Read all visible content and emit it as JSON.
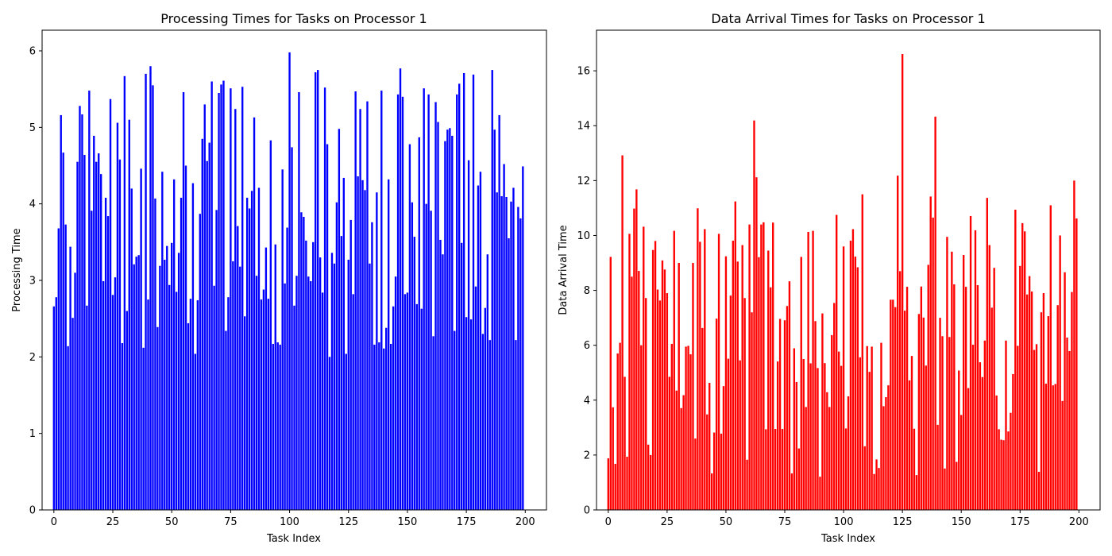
{
  "chart_data": [
    {
      "type": "bar",
      "title": "Processing Times for Tasks on Processor 1",
      "xlabel": "Task Index",
      "ylabel": "Processing Time",
      "color": "#0000ff",
      "xlim": [
        -5,
        209
      ],
      "ylim": [
        0,
        6.27
      ],
      "xticks": [
        0,
        25,
        50,
        75,
        100,
        125,
        150,
        175,
        200
      ],
      "yticks": [
        0,
        1,
        2,
        3,
        4,
        5,
        6
      ],
      "x": [
        0,
        1,
        2,
        3,
        4,
        5,
        6,
        7,
        8,
        9,
        10,
        11,
        12,
        13,
        14,
        15,
        16,
        17,
        18,
        19,
        20,
        21,
        22,
        23,
        24,
        25,
        26,
        27,
        28,
        29,
        30,
        31,
        32,
        33,
        34,
        35,
        36,
        37,
        38,
        39,
        40,
        41,
        42,
        43,
        44,
        45,
        46,
        47,
        48,
        49,
        50,
        51,
        52,
        53,
        54,
        55,
        56,
        57,
        58,
        59,
        60,
        61,
        62,
        63,
        64,
        65,
        66,
        67,
        68,
        69,
        70,
        71,
        72,
        73,
        74,
        75,
        76,
        77,
        78,
        79,
        80,
        81,
        82,
        83,
        84,
        85,
        86,
        87,
        88,
        89,
        90,
        91,
        92,
        93,
        94,
        95,
        96,
        97,
        98,
        99,
        100,
        101,
        102,
        103,
        104,
        105,
        106,
        107,
        108,
        109,
        110,
        111,
        112,
        113,
        114,
        115,
        116,
        117,
        118,
        119,
        120,
        121,
        122,
        123,
        124,
        125,
        126,
        127,
        128,
        129,
        130,
        131,
        132,
        133,
        134,
        135,
        136,
        137,
        138,
        139,
        140,
        141,
        142,
        143,
        144,
        145,
        146,
        147,
        148,
        149,
        150,
        151,
        152,
        153,
        154,
        155,
        156,
        157,
        158,
        159,
        160,
        161,
        162,
        163,
        164,
        165,
        166,
        167,
        168,
        169,
        170,
        171,
        172,
        173,
        174,
        175,
        176,
        177,
        178,
        179,
        180,
        181,
        182,
        183,
        184,
        185,
        186,
        187,
        188,
        189,
        190,
        191,
        192,
        193,
        194,
        195,
        196,
        197,
        198,
        199
      ],
      "values": [
        2.66,
        2.78,
        3.68,
        5.16,
        4.67,
        3.73,
        2.14,
        3.44,
        2.51,
        3.1,
        4.55,
        5.28,
        5.17,
        4.64,
        2.67,
        5.48,
        3.91,
        4.89,
        4.55,
        4.66,
        4.39,
        2.99,
        4.08,
        3.84,
        5.37,
        2.81,
        3.04,
        5.06,
        4.58,
        2.18,
        5.67,
        2.6,
        5.1,
        4.2,
        3.21,
        3.31,
        3.33,
        4.46,
        2.12,
        5.7,
        2.75,
        5.8,
        5.55,
        4.07,
        2.39,
        3.19,
        4.42,
        3.27,
        3.45,
        2.94,
        3.49,
        4.32,
        2.85,
        3.36,
        4.08,
        5.46,
        4.5,
        2.44,
        2.76,
        4.27,
        2.04,
        2.74,
        3.87,
        4.85,
        5.3,
        4.56,
        4.8,
        5.6,
        2.93,
        3.92,
        5.45,
        5.56,
        5.61,
        2.34,
        2.78,
        5.51,
        3.25,
        5.24,
        3.71,
        3.18,
        5.53,
        2.53,
        4.08,
        3.94,
        4.17,
        5.13,
        3.06,
        4.21,
        2.75,
        2.88,
        3.43,
        2.76,
        4.83,
        2.17,
        3.47,
        2.19,
        2.16,
        4.45,
        2.96,
        3.69,
        5.98,
        4.74,
        2.67,
        3.06,
        5.46,
        3.89,
        3.83,
        3.52,
        3.05,
        2.99,
        3.5,
        5.72,
        5.75,
        3.3,
        2.84,
        5.52,
        4.78,
        2.0,
        3.36,
        3.22,
        4.02,
        4.98,
        3.58,
        4.34,
        2.04,
        3.27,
        3.79,
        2.82,
        5.47,
        4.36,
        5.24,
        4.31,
        4.18,
        5.34,
        3.22,
        3.76,
        2.16,
        4.15,
        2.19,
        5.48,
        2.11,
        2.38,
        4.32,
        2.17,
        2.66,
        3.05,
        5.43,
        5.77,
        5.4,
        2.82,
        2.84,
        4.78,
        4.02,
        3.57,
        2.69,
        4.87,
        2.63,
        5.51,
        4.0,
        5.43,
        3.91,
        2.27,
        5.33,
        5.07,
        3.53,
        3.34,
        4.82,
        4.97,
        4.99,
        4.89,
        2.34,
        5.43,
        5.57,
        3.49,
        5.71,
        2.52,
        4.57,
        2.49,
        5.69,
        2.92,
        4.24,
        4.42,
        2.3,
        2.64,
        3.34,
        2.22,
        5.75,
        4.97,
        4.15,
        5.16,
        4.1,
        4.52,
        4.09,
        3.55,
        4.03,
        4.21,
        2.22,
        3.96,
        3.81,
        4.49
      ]
    },
    {
      "type": "bar",
      "title": "Data Arrival Times for Tasks on Processor 1",
      "xlabel": "Task Index",
      "ylabel": "Data Arrival Time",
      "color": "#ff0000",
      "xlim": [
        -5,
        209
      ],
      "ylim": [
        0,
        17.48
      ],
      "xticks": [
        0,
        25,
        50,
        75,
        100,
        125,
        150,
        175,
        200
      ],
      "yticks": [
        0,
        2,
        4,
        6,
        8,
        10,
        12,
        14,
        16
      ],
      "x": [
        0,
        1,
        2,
        3,
        4,
        5,
        6,
        7,
        8,
        9,
        10,
        11,
        12,
        13,
        14,
        15,
        16,
        17,
        18,
        19,
        20,
        21,
        22,
        23,
        24,
        25,
        26,
        27,
        28,
        29,
        30,
        31,
        32,
        33,
        34,
        35,
        36,
        37,
        38,
        39,
        40,
        41,
        42,
        43,
        44,
        45,
        46,
        47,
        48,
        49,
        50,
        51,
        52,
        53,
        54,
        55,
        56,
        57,
        58,
        59,
        60,
        61,
        62,
        63,
        64,
        65,
        66,
        67,
        68,
        69,
        70,
        71,
        72,
        73,
        74,
        75,
        76,
        77,
        78,
        79,
        80,
        81,
        82,
        83,
        84,
        85,
        86,
        87,
        88,
        89,
        90,
        91,
        92,
        93,
        94,
        95,
        96,
        97,
        98,
        99,
        100,
        101,
        102,
        103,
        104,
        105,
        106,
        107,
        108,
        109,
        110,
        111,
        112,
        113,
        114,
        115,
        116,
        117,
        118,
        119,
        120,
        121,
        122,
        123,
        124,
        125,
        126,
        127,
        128,
        129,
        130,
        131,
        132,
        133,
        134,
        135,
        136,
        137,
        138,
        139,
        140,
        141,
        142,
        143,
        144,
        145,
        146,
        147,
        148,
        149,
        150,
        151,
        152,
        153,
        154,
        155,
        156,
        157,
        158,
        159,
        160,
        161,
        162,
        163,
        164,
        165,
        166,
        167,
        168,
        169,
        170,
        171,
        172,
        173,
        174,
        175,
        176,
        177,
        178,
        179,
        180,
        181,
        182,
        183,
        184,
        185,
        186,
        187,
        188,
        189,
        190,
        191,
        192,
        193,
        194,
        195,
        196,
        197,
        198,
        199
      ],
      "values": [
        1.88,
        9.22,
        3.74,
        1.68,
        5.7,
        6.09,
        12.92,
        4.85,
        1.94,
        10.06,
        8.5,
        10.98,
        11.68,
        8.71,
        6.0,
        10.32,
        7.72,
        2.38,
        2.0,
        9.47,
        9.8,
        8.03,
        7.63,
        9.09,
        8.76,
        7.9,
        4.85,
        6.05,
        10.17,
        4.35,
        9.0,
        3.71,
        4.18,
        5.95,
        5.98,
        5.67,
        9.0,
        2.6,
        10.99,
        9.77,
        6.63,
        10.23,
        3.48,
        4.63,
        1.33,
        2.82,
        6.97,
        10.06,
        2.78,
        4.51,
        9.24,
        5.51,
        7.81,
        9.81,
        11.24,
        9.05,
        5.45,
        9.65,
        7.72,
        1.83,
        10.4,
        7.2,
        14.19,
        12.12,
        9.21,
        10.4,
        10.48,
        2.94,
        9.45,
        8.11,
        10.47,
        2.95,
        5.41,
        6.96,
        2.95,
        6.91,
        7.43,
        8.33,
        1.33,
        5.89,
        4.66,
        2.24,
        9.22,
        5.5,
        3.75,
        10.13,
        5.34,
        10.17,
        6.88,
        5.17,
        1.21,
        7.16,
        5.35,
        4.29,
        3.75,
        6.37,
        7.54,
        10.75,
        5.77,
        5.25,
        9.6,
        2.97,
        4.14,
        9.81,
        10.23,
        9.23,
        8.84,
        5.56,
        11.5,
        2.32,
        5.97,
        5.03,
        5.95,
        1.31,
        1.84,
        1.53,
        6.09,
        3.78,
        4.11,
        4.54,
        7.66,
        7.66,
        7.39,
        12.18,
        8.7,
        16.61,
        7.26,
        8.13,
        4.72,
        5.61,
        2.96,
        1.27,
        7.14,
        8.14,
        7.01,
        5.26,
        8.93,
        11.42,
        10.65,
        14.33,
        3.1,
        7.0,
        6.33,
        1.51,
        9.95,
        6.3,
        9.41,
        8.22,
        1.75,
        5.08,
        3.46,
        9.29,
        8.13,
        4.44,
        10.71,
        6.02,
        10.19,
        8.19,
        5.38,
        4.84,
        6.17,
        11.37,
        9.65,
        7.37,
        8.82,
        4.17,
        2.94,
        2.56,
        2.54,
        6.17,
        2.86,
        3.54,
        4.95,
        10.94,
        5.98,
        8.89,
        10.45,
        10.15,
        7.85,
        8.52,
        7.96,
        5.83,
        6.04,
        1.39,
        7.2,
        7.9,
        4.6,
        7.06,
        11.1,
        4.54,
        4.59,
        7.46,
        10.0,
        3.97,
        8.66,
        6.28,
        5.79,
        7.94,
        12.0,
        10.62
      ]
    }
  ]
}
